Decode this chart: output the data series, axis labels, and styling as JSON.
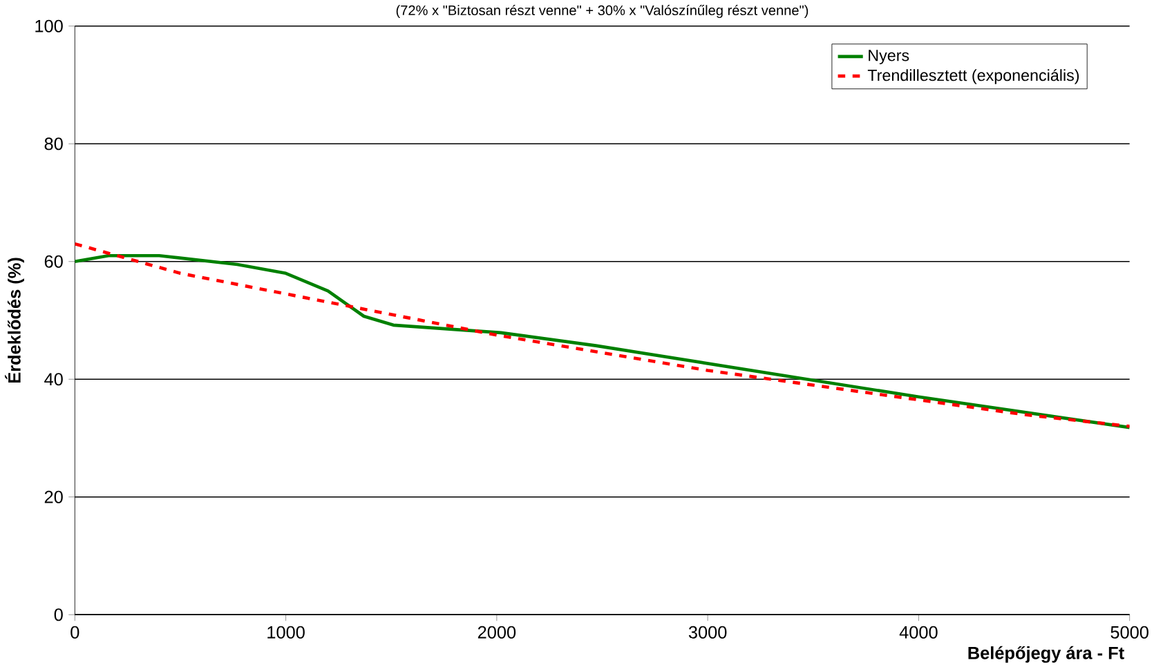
{
  "chart_data": {
    "type": "line",
    "subtitle": "(72% x \"Biztosan részt venne\" + 30% x \"Valószínűleg részt venne\")",
    "xlabel": "Belépőjegy ára - Ft",
    "ylabel": "Érdeklődés (%)",
    "xlim": [
      0,
      5000
    ],
    "xticks": [
      0,
      1000,
      2000,
      3000,
      4000,
      5000
    ],
    "ylim": [
      0,
      100
    ],
    "yticks": [
      0,
      20,
      40,
      60,
      80,
      100
    ],
    "grid": "y",
    "legend": "top right",
    "series": [
      {
        "name": "Nyers",
        "color": "#008000",
        "line_style": "solid",
        "x": [
          0,
          160,
          400,
          770,
          1000,
          1200,
          1370,
          1510,
          2020,
          2470,
          3470,
          4000,
          5000
        ],
        "values": [
          60,
          61,
          61,
          59.5,
          58,
          55,
          50.7,
          49.2,
          47.9,
          45.7,
          40,
          37,
          31.8
        ]
      },
      {
        "name": "Trendillesztett (exponenciális)",
        "color": "#ff0000",
        "line_style": "dashed",
        "x": [
          0,
          500,
          1000,
          1500,
          2000,
          2500,
          3000,
          3500,
          4000,
          4500,
          5000
        ],
        "values": [
          63,
          58,
          54.5,
          51,
          47.5,
          44.5,
          41.5,
          39,
          36.5,
          34,
          32
        ]
      }
    ]
  }
}
